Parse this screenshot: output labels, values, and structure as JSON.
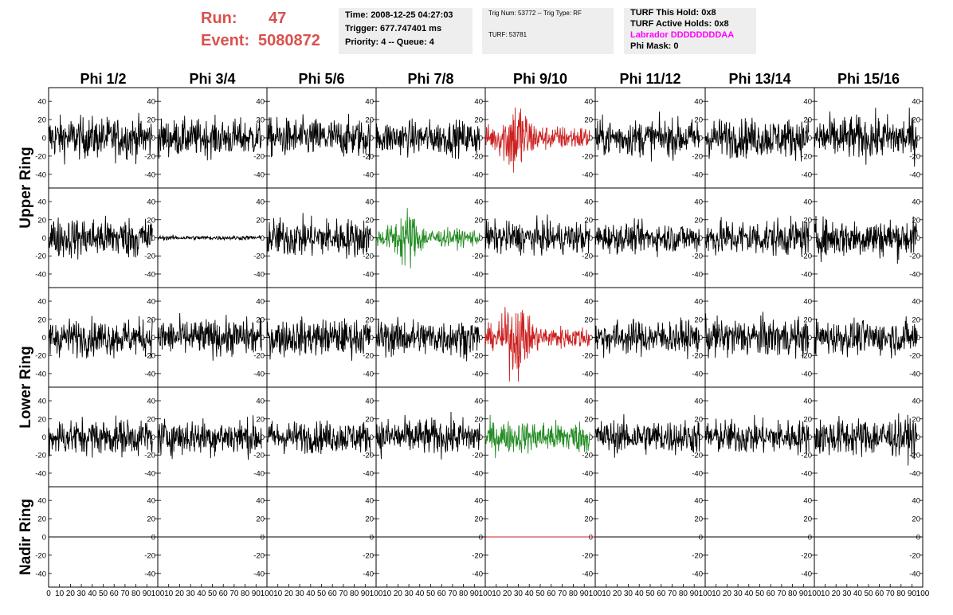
{
  "header": {
    "run_label": "Run:",
    "run_value": "47",
    "event_label": "Event:",
    "event_value": "5080872",
    "time": "Time: 2008-12-25 04:27:03",
    "trigger": "Trigger: 677.747401 ms",
    "priority": "Priority: 4 -- Queue: 4",
    "trig_num": "Trig Num: 53772 -- Trig Type: RF",
    "turf": "TURF: 53781",
    "turf_this_hold": "TURF This Hold: 0x8",
    "turf_active_holds": "TURF Active Holds: 0x8",
    "labrador": "Labrador DDDDDDDDAA",
    "phi_mask": "Phi Mask: 0",
    "labrador_color": "#ff00ff",
    "run_color": "#d9524d"
  },
  "chart_data": {
    "type": "line",
    "columns": [
      "Phi 1/2",
      "Phi 3/4",
      "Phi 5/6",
      "Phi 7/8",
      "Phi 9/10",
      "Phi 11/12",
      "Phi 13/14",
      "Phi 15/16"
    ],
    "ring_labels": [
      {
        "text": "Upper Ring",
        "rows": [
          0,
          1
        ]
      },
      {
        "text": "Lower Ring",
        "rows": [
          2,
          3
        ]
      },
      {
        "text": "Nadir Ring",
        "rows": [
          4
        ]
      }
    ],
    "xlim": [
      0,
      100
    ],
    "ylim": [
      -55,
      55
    ],
    "x_ticks": [
      "0",
      "10",
      "20",
      "30",
      "40",
      "50",
      "60",
      "70",
      "80",
      "90",
      "100"
    ],
    "y_ticks": [
      40,
      20,
      0,
      -20,
      -40
    ],
    "colors": {
      "normal": "#000000",
      "triggered_red": "#cc2222",
      "triggered_green": "#228b22"
    },
    "highlighted": [
      {
        "row": 0,
        "col": 4,
        "color": "triggered_red"
      },
      {
        "row": 1,
        "col": 3,
        "color": "triggered_green"
      },
      {
        "row": 2,
        "col": 4,
        "color": "triggered_red"
      },
      {
        "row": 3,
        "col": 4,
        "color": "triggered_green"
      },
      {
        "row": 4,
        "col": 4,
        "color": "triggered_red"
      }
    ],
    "waveform_amplitude": [
      [
        18,
        16,
        17,
        15,
        30,
        16,
        17,
        19
      ],
      [
        18,
        2,
        17,
        22,
        14,
        13,
        16,
        17
      ],
      [
        16,
        16,
        16,
        16,
        28,
        15,
        17,
        15
      ],
      [
        16,
        16,
        14,
        16,
        14,
        15,
        15,
        17
      ],
      [
        0,
        0,
        0,
        0,
        0,
        0,
        0,
        0
      ]
    ],
    "nadir_flat": true
  }
}
